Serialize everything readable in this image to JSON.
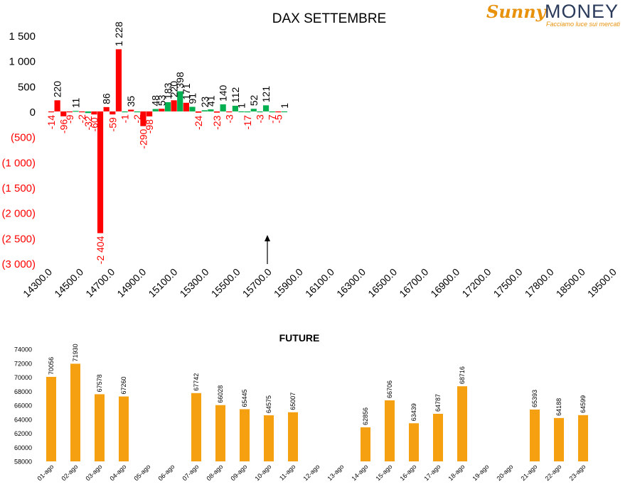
{
  "logo": {
    "brand_left": "Sunny",
    "brand_right": "MONEY",
    "tagline": "Facciamo luce sui mercati"
  },
  "colors": {
    "positive": "#00b050",
    "negative": "#ff0000",
    "future": "#f5a010",
    "label_neg": "#ff0000",
    "label_pos": "#000000"
  },
  "chart_data": [
    {
      "type": "bar",
      "title": "DAX SETTEMBRE",
      "ylim": [
        -3000,
        1500
      ],
      "y_ticks": [
        1500,
        1000,
        500,
        0,
        -500,
        -1000,
        -1500,
        -2000,
        -2500,
        -3000
      ],
      "y_tick_labels": [
        "1 500",
        "1 000",
        "500",
        "0",
        "(500)",
        "(1 000)",
        "(1 500)",
        "(2 000)",
        "(2 500)",
        "(3 000)"
      ],
      "x_tick_labels": [
        "14300.0",
        "14500.0",
        "14700.0",
        "14900.0",
        "15100.0",
        "15300.0",
        "15500.0",
        "15700.0",
        "15900.0",
        "16100.0",
        "16300.0",
        "16500.0",
        "16700.0",
        "16900.0",
        "17200.0",
        "17500.0",
        "17800.0",
        "18500.0",
        "19500.0"
      ],
      "annotation": "arrow",
      "bars": [
        {
          "value": -14,
          "label": "-14",
          "series": "put"
        },
        {
          "value": 220,
          "label": "220",
          "series": "put"
        },
        {
          "value": -96,
          "label": "-96",
          "series": "put"
        },
        {
          "value": -9,
          "label": "-9",
          "series": "put"
        },
        {
          "value": 11,
          "label": "11",
          "series": "call"
        },
        {
          "value": -2,
          "label": "-2",
          "series": "put"
        },
        {
          "value": -32,
          "label": "-32",
          "series": "call"
        },
        {
          "value": -60,
          "label": "-60",
          "series": "put"
        },
        {
          "value": -2404,
          "label": "-2 404",
          "series": "put"
        },
        {
          "value": 86,
          "label": "86",
          "series": "put"
        },
        {
          "value": -59,
          "label": "-59",
          "series": "put"
        },
        {
          "value": 1228,
          "label": "1 228",
          "series": "put"
        },
        {
          "value": -1,
          "label": "-1",
          "series": "call"
        },
        {
          "value": 35,
          "label": "35",
          "series": "put"
        },
        {
          "value": -2,
          "label": "-2",
          "series": "call"
        },
        {
          "value": -290,
          "label": "-290",
          "series": "put"
        },
        {
          "value": -98,
          "label": "-98",
          "series": "put"
        },
        {
          "value": 48,
          "label": "48",
          "series": "call"
        },
        {
          "value": 53,
          "label": "53",
          "series": "put"
        },
        {
          "value": 183,
          "label": "183",
          "series": "call"
        },
        {
          "value": 220,
          "label": "220",
          "series": "put"
        },
        {
          "value": 398,
          "label": "398",
          "series": "call"
        },
        {
          "value": 171,
          "label": "171",
          "series": "put"
        },
        {
          "value": 91,
          "label": "91",
          "series": "call"
        },
        {
          "value": -24,
          "label": "-24",
          "series": "put"
        },
        {
          "value": 23,
          "label": "23",
          "series": "call"
        },
        {
          "value": 41,
          "label": "41",
          "series": "call"
        },
        {
          "value": -23,
          "label": "-23",
          "series": "put"
        },
        {
          "value": 140,
          "label": "140",
          "series": "call"
        },
        {
          "value": -3,
          "label": "-3",
          "series": "put"
        },
        {
          "value": 112,
          "label": "112",
          "series": "call"
        },
        {
          "value": 1,
          "label": "1",
          "series": "call"
        },
        {
          "value": -17,
          "label": "-17",
          "series": "call"
        },
        {
          "value": 52,
          "label": "52",
          "series": "call"
        },
        {
          "value": -3,
          "label": "-3",
          "series": "call"
        },
        {
          "value": 121,
          "label": "121",
          "series": "call"
        },
        {
          "value": -7,
          "label": "-7",
          "series": "call"
        },
        {
          "value": -5,
          "label": "-5",
          "series": "put"
        },
        {
          "value": 1,
          "label": "1",
          "series": "call"
        }
      ]
    },
    {
      "type": "bar",
      "title": "FUTURE",
      "ylim": [
        58000,
        74000
      ],
      "y_ticks": [
        58000,
        60000,
        62000,
        64000,
        66000,
        68000,
        70000,
        72000,
        74000
      ],
      "categories": [
        "01-ago",
        "02-ago",
        "03-ago",
        "04-ago",
        "05-ago",
        "06-ago",
        "07-ago",
        "08-ago",
        "09-ago",
        "10-ago",
        "11-ago",
        "12-ago",
        "13-ago",
        "14-ago",
        "15-ago",
        "16-ago",
        "17-ago",
        "18-ago",
        "19-ago",
        "20-ago",
        "21-ago",
        "22-ago",
        "23-ago"
      ],
      "values": [
        70056,
        71930,
        67578,
        67260,
        null,
        null,
        67742,
        66028,
        65445,
        64575,
        65007,
        null,
        null,
        62856,
        66706,
        63439,
        64787,
        68716,
        null,
        null,
        65393,
        64188,
        64599
      ]
    }
  ]
}
